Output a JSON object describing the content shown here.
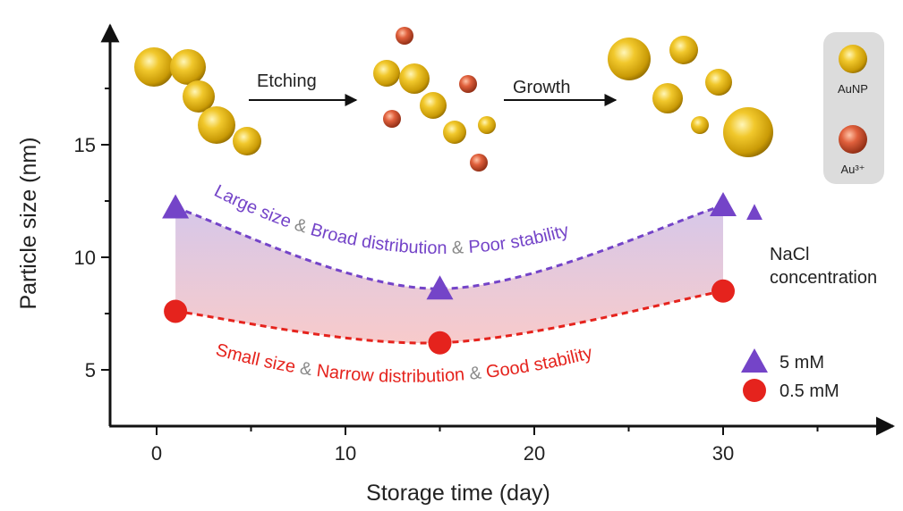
{
  "chart_data": {
    "type": "scatter",
    "x_label": "Storage time (day)",
    "y_label": "Particle size (nm)",
    "xlim": [
      -2.5,
      39
    ],
    "ylim": [
      2.5,
      20.3
    ],
    "xticks": [
      0,
      10,
      20,
      30
    ],
    "yticks": [
      5,
      10,
      15
    ],
    "x_minor_ticks": [
      5,
      15,
      25,
      35
    ],
    "y_minor_ticks": [
      7.5,
      12.5,
      17.5
    ],
    "legend": "lower right",
    "line_style": "dashed",
    "series": [
      {
        "name": "5 mM",
        "color": "#7444c8",
        "marker": "triangle",
        "x": [
          1,
          15,
          30
        ],
        "values": [
          12.2,
          8.6,
          12.3
        ]
      },
      {
        "name": "0.5 mM",
        "color": "#e5231d",
        "marker": "circle",
        "x": [
          1,
          15,
          30
        ],
        "values": [
          7.6,
          6.2,
          8.5
        ]
      }
    ],
    "annotations": {
      "etching": "Etching",
      "growth": "Growth",
      "aunp": "AuNP",
      "au3": "Au³⁺",
      "nacl": [
        "NaCl",
        "concentration"
      ],
      "upper_caption": [
        {
          "text": "Large size ",
          "color": "#7444c8"
        },
        {
          "text": "& ",
          "color": "#8a8a8a"
        },
        {
          "text": "Broad distribution ",
          "color": "#7444c8"
        },
        {
          "text": "& ",
          "color": "#8a8a8a"
        },
        {
          "text": "Poor stability",
          "color": "#7444c8"
        }
      ],
      "lower_caption": [
        {
          "text": "Small size ",
          "color": "#e5231d"
        },
        {
          "text": "& ",
          "color": "#8a8a8a"
        },
        {
          "text": "Narrow distribution ",
          "color": "#e5231d"
        },
        {
          "text": "& ",
          "color": "#8a8a8a"
        },
        {
          "text": "Good stability",
          "color": "#e5231d"
        }
      ]
    }
  }
}
